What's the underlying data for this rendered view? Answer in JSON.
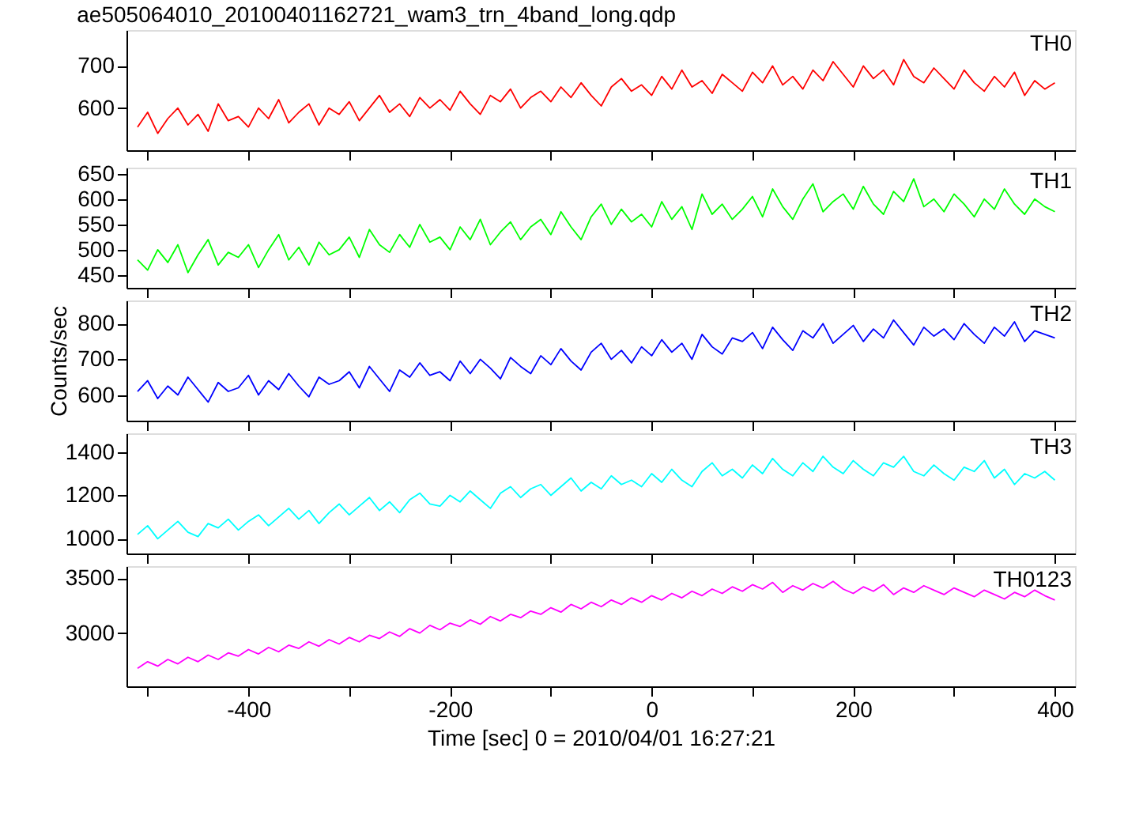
{
  "chart_data": [
    {
      "type": "line",
      "title": "ae505064010_20100401162721_wam3_trn_4band_long.qdp",
      "tick_labels": "y",
      "grid": false,
      "xlim": [
        -521,
        420
      ],
      "ylim": [
        500,
        785
      ],
      "xticks": [
        {
          "value": -500,
          "label": null
        },
        {
          "value": -400,
          "label": null
        },
        {
          "value": -300,
          "label": null
        },
        {
          "value": -200,
          "label": null
        },
        {
          "value": -100,
          "label": null
        },
        {
          "value": 0,
          "label": null
        },
        {
          "value": 100,
          "label": null
        },
        {
          "value": 200,
          "label": null
        },
        {
          "value": 300,
          "label": null
        },
        {
          "value": 400,
          "label": null
        }
      ],
      "yticks": [
        600,
        700
      ],
      "x": [
        -510,
        -500,
        -490,
        -480,
        -470,
        -460,
        -450,
        -440,
        -430,
        -420,
        -410,
        -400,
        -390,
        -380,
        -370,
        -360,
        -350,
        -340,
        -330,
        -320,
        -310,
        -300,
        -290,
        -280,
        -270,
        -260,
        -250,
        -240,
        -230,
        -220,
        -210,
        -200,
        -190,
        -180,
        -170,
        -160,
        -150,
        -140,
        -130,
        -120,
        -110,
        -100,
        -90,
        -80,
        -70,
        -60,
        -50,
        -40,
        -30,
        -20,
        -10,
        0,
        10,
        20,
        30,
        40,
        50,
        60,
        70,
        80,
        90,
        100,
        110,
        120,
        130,
        140,
        150,
        160,
        170,
        180,
        190,
        200,
        210,
        220,
        230,
        240,
        250,
        260,
        270,
        280,
        290,
        300,
        310,
        320,
        330,
        340,
        350,
        360,
        370,
        380,
        390,
        400
      ],
      "series": [
        {
          "name": "TH0",
          "color": "#ff0000",
          "line_style": "solid",
          "values": [
            555,
            590,
            540,
            575,
            600,
            560,
            585,
            545,
            610,
            570,
            580,
            555,
            600,
            575,
            620,
            565,
            590,
            610,
            560,
            600,
            585,
            615,
            570,
            600,
            630,
            590,
            610,
            580,
            625,
            600,
            620,
            595,
            640,
            610,
            585,
            630,
            615,
            645,
            600,
            625,
            640,
            615,
            650,
            625,
            660,
            630,
            605,
            650,
            670,
            640,
            655,
            630,
            675,
            645,
            690,
            650,
            665,
            635,
            680,
            660,
            640,
            685,
            660,
            700,
            655,
            675,
            645,
            690,
            665,
            710,
            680,
            650,
            700,
            670,
            690,
            655,
            715,
            675,
            660,
            695,
            670,
            645,
            690,
            660,
            640,
            675,
            650,
            685,
            630,
            665,
            645,
            660
          ]
        }
      ]
    },
    {
      "type": "line",
      "tick_labels": "y",
      "grid": false,
      "xlim": [
        -521,
        420
      ],
      "ylim": [
        425,
        662
      ],
      "xticks": [
        {
          "value": -500,
          "label": null
        },
        {
          "value": -400,
          "label": null
        },
        {
          "value": -300,
          "label": null
        },
        {
          "value": -200,
          "label": null
        },
        {
          "value": -100,
          "label": null
        },
        {
          "value": 0,
          "label": null
        },
        {
          "value": 100,
          "label": null
        },
        {
          "value": 200,
          "label": null
        },
        {
          "value": 300,
          "label": null
        },
        {
          "value": 400,
          "label": null
        }
      ],
      "yticks": [
        450,
        500,
        550,
        600,
        650
      ],
      "x": [
        -510,
        -500,
        -490,
        -480,
        -470,
        -460,
        -450,
        -440,
        -430,
        -420,
        -410,
        -400,
        -390,
        -380,
        -370,
        -360,
        -350,
        -340,
        -330,
        -320,
        -310,
        -300,
        -290,
        -280,
        -270,
        -260,
        -250,
        -240,
        -230,
        -220,
        -210,
        -200,
        -190,
        -180,
        -170,
        -160,
        -150,
        -140,
        -130,
        -120,
        -110,
        -100,
        -90,
        -80,
        -70,
        -60,
        -50,
        -40,
        -30,
        -20,
        -10,
        0,
        10,
        20,
        30,
        40,
        50,
        60,
        70,
        80,
        90,
        100,
        110,
        120,
        130,
        140,
        150,
        160,
        170,
        180,
        190,
        200,
        210,
        220,
        230,
        240,
        250,
        260,
        270,
        280,
        290,
        300,
        310,
        320,
        330,
        340,
        350,
        360,
        370,
        380,
        390,
        400
      ],
      "series": [
        {
          "name": "TH1",
          "color": "#00ff00",
          "line_style": "solid",
          "values": [
            480,
            460,
            500,
            475,
            510,
            455,
            490,
            520,
            470,
            495,
            485,
            510,
            465,
            500,
            530,
            480,
            505,
            470,
            515,
            490,
            500,
            525,
            485,
            540,
            510,
            495,
            530,
            505,
            550,
            515,
            525,
            500,
            545,
            520,
            560,
            510,
            535,
            555,
            520,
            545,
            560,
            530,
            575,
            545,
            520,
            565,
            590,
            550,
            580,
            555,
            570,
            545,
            595,
            560,
            585,
            540,
            610,
            570,
            590,
            560,
            580,
            605,
            565,
            620,
            585,
            560,
            600,
            630,
            575,
            595,
            610,
            580,
            625,
            590,
            570,
            615,
            595,
            640,
            585,
            600,
            575,
            610,
            590,
            565,
            600,
            580,
            620,
            590,
            570,
            600,
            585,
            575
          ]
        }
      ]
    },
    {
      "type": "line",
      "tick_labels": "y",
      "grid": false,
      "ylabel": "Counts/sec",
      "xlim": [
        -521,
        420
      ],
      "ylim": [
        528,
        865
      ],
      "xticks": [
        {
          "value": -500,
          "label": null
        },
        {
          "value": -400,
          "label": null
        },
        {
          "value": -300,
          "label": null
        },
        {
          "value": -200,
          "label": null
        },
        {
          "value": -100,
          "label": null
        },
        {
          "value": 0,
          "label": null
        },
        {
          "value": 100,
          "label": null
        },
        {
          "value": 200,
          "label": null
        },
        {
          "value": 300,
          "label": null
        },
        {
          "value": 400,
          "label": null
        }
      ],
      "yticks": [
        600,
        700,
        800
      ],
      "x": [
        -510,
        -500,
        -490,
        -480,
        -470,
        -460,
        -450,
        -440,
        -430,
        -420,
        -410,
        -400,
        -390,
        -380,
        -370,
        -360,
        -350,
        -340,
        -330,
        -320,
        -310,
        -300,
        -290,
        -280,
        -270,
        -260,
        -250,
        -240,
        -230,
        -220,
        -210,
        -200,
        -190,
        -180,
        -170,
        -160,
        -150,
        -140,
        -130,
        -120,
        -110,
        -100,
        -90,
        -80,
        -70,
        -60,
        -50,
        -40,
        -30,
        -20,
        -10,
        0,
        10,
        20,
        30,
        40,
        50,
        60,
        70,
        80,
        90,
        100,
        110,
        120,
        130,
        140,
        150,
        160,
        170,
        180,
        190,
        200,
        210,
        220,
        230,
        240,
        250,
        260,
        270,
        280,
        290,
        300,
        310,
        320,
        330,
        340,
        350,
        360,
        370,
        380,
        390,
        400
      ],
      "series": [
        {
          "name": "TH2",
          "color": "#0000ff",
          "line_style": "solid",
          "values": [
            610,
            640,
            590,
            625,
            600,
            650,
            615,
            580,
            635,
            610,
            620,
            655,
            600,
            640,
            615,
            660,
            625,
            595,
            650,
            630,
            640,
            665,
            620,
            680,
            645,
            610,
            670,
            650,
            690,
            655,
            665,
            640,
            695,
            660,
            700,
            675,
            645,
            705,
            680,
            660,
            710,
            685,
            730,
            695,
            670,
            720,
            745,
            700,
            725,
            690,
            735,
            710,
            755,
            720,
            745,
            700,
            770,
            735,
            715,
            760,
            750,
            775,
            730,
            790,
            755,
            725,
            780,
            760,
            800,
            745,
            770,
            795,
            750,
            785,
            760,
            810,
            775,
            740,
            790,
            765,
            785,
            755,
            800,
            770,
            745,
            790,
            765,
            805,
            750,
            780,
            770,
            760
          ]
        }
      ]
    },
    {
      "type": "line",
      "tick_labels": "y",
      "grid": false,
      "xlim": [
        -521,
        420
      ],
      "ylim": [
        932,
        1486
      ],
      "xticks": [
        {
          "value": -500,
          "label": null
        },
        {
          "value": -400,
          "label": null
        },
        {
          "value": -300,
          "label": null
        },
        {
          "value": -200,
          "label": null
        },
        {
          "value": -100,
          "label": null
        },
        {
          "value": 0,
          "label": null
        },
        {
          "value": 100,
          "label": null
        },
        {
          "value": 200,
          "label": null
        },
        {
          "value": 300,
          "label": null
        },
        {
          "value": 400,
          "label": null
        }
      ],
      "yticks": [
        1000,
        1200,
        1400
      ],
      "x": [
        -510,
        -500,
        -490,
        -480,
        -470,
        -460,
        -450,
        -440,
        -430,
        -420,
        -410,
        -400,
        -390,
        -380,
        -370,
        -360,
        -350,
        -340,
        -330,
        -320,
        -310,
        -300,
        -290,
        -280,
        -270,
        -260,
        -250,
        -240,
        -230,
        -220,
        -210,
        -200,
        -190,
        -180,
        -170,
        -160,
        -150,
        -140,
        -130,
        -120,
        -110,
        -100,
        -90,
        -80,
        -70,
        -60,
        -50,
        -40,
        -30,
        -20,
        -10,
        0,
        10,
        20,
        30,
        40,
        50,
        60,
        70,
        80,
        90,
        100,
        110,
        120,
        130,
        140,
        150,
        160,
        170,
        180,
        190,
        200,
        210,
        220,
        230,
        240,
        250,
        260,
        270,
        280,
        290,
        300,
        310,
        320,
        330,
        340,
        350,
        360,
        370,
        380,
        390,
        400
      ],
      "series": [
        {
          "name": "TH3",
          "color": "#00ffff",
          "line_style": "solid",
          "values": [
            1020,
            1060,
            1000,
            1040,
            1080,
            1030,
            1010,
            1070,
            1050,
            1090,
            1040,
            1080,
            1110,
            1060,
            1100,
            1140,
            1090,
            1130,
            1070,
            1120,
            1160,
            1110,
            1150,
            1190,
            1130,
            1170,
            1120,
            1180,
            1210,
            1160,
            1150,
            1200,
            1170,
            1220,
            1180,
            1140,
            1210,
            1240,
            1190,
            1230,
            1250,
            1200,
            1240,
            1280,
            1220,
            1260,
            1230,
            1290,
            1250,
            1270,
            1240,
            1300,
            1260,
            1320,
            1270,
            1240,
            1310,
            1350,
            1290,
            1320,
            1280,
            1340,
            1300,
            1370,
            1320,
            1290,
            1350,
            1310,
            1380,
            1330,
            1300,
            1360,
            1320,
            1290,
            1350,
            1330,
            1380,
            1310,
            1290,
            1340,
            1300,
            1270,
            1330,
            1310,
            1360,
            1280,
            1320,
            1250,
            1300,
            1280,
            1310,
            1270
          ]
        }
      ]
    },
    {
      "type": "line",
      "grid": false,
      "xlabel": "Time [sec] 0 = 2010/04/01 16:27:21",
      "xlim": [
        -521,
        420
      ],
      "ylim": [
        2516,
        3608
      ],
      "xticks": [
        {
          "value": -500,
          "label": null
        },
        -400,
        {
          "value": -300,
          "label": null
        },
        -200,
        {
          "value": -100,
          "label": null
        },
        0,
        {
          "value": 100,
          "label": null
        },
        200,
        {
          "value": 300,
          "label": null
        },
        400
      ],
      "yticks": [
        3000,
        3500
      ],
      "x": [
        -510,
        -500,
        -490,
        -480,
        -470,
        -460,
        -450,
        -440,
        -430,
        -420,
        -410,
        -400,
        -390,
        -380,
        -370,
        -360,
        -350,
        -340,
        -330,
        -320,
        -310,
        -300,
        -290,
        -280,
        -270,
        -260,
        -250,
        -240,
        -230,
        -220,
        -210,
        -200,
        -190,
        -180,
        -170,
        -160,
        -150,
        -140,
        -130,
        -120,
        -110,
        -100,
        -90,
        -80,
        -70,
        -60,
        -50,
        -40,
        -30,
        -20,
        -10,
        0,
        10,
        20,
        30,
        40,
        50,
        60,
        70,
        80,
        90,
        100,
        110,
        120,
        130,
        140,
        150,
        160,
        170,
        180,
        190,
        200,
        210,
        220,
        230,
        240,
        250,
        260,
        270,
        280,
        290,
        300,
        310,
        320,
        330,
        340,
        350,
        360,
        370,
        380,
        390,
        400
      ],
      "series": [
        {
          "name": "TH0123",
          "color": "#ff00ff",
          "line_style": "solid",
          "values": [
            2680,
            2740,
            2700,
            2760,
            2720,
            2780,
            2740,
            2800,
            2760,
            2820,
            2790,
            2850,
            2810,
            2870,
            2830,
            2890,
            2860,
            2920,
            2880,
            2940,
            2900,
            2960,
            2920,
            2980,
            2950,
            3010,
            2970,
            3040,
            3000,
            3070,
            3030,
            3090,
            3060,
            3120,
            3080,
            3150,
            3110,
            3170,
            3140,
            3200,
            3170,
            3230,
            3190,
            3260,
            3220,
            3280,
            3240,
            3300,
            3260,
            3320,
            3280,
            3340,
            3300,
            3360,
            3320,
            3380,
            3340,
            3400,
            3360,
            3420,
            3380,
            3440,
            3400,
            3460,
            3370,
            3430,
            3390,
            3450,
            3410,
            3470,
            3400,
            3360,
            3420,
            3380,
            3440,
            3350,
            3410,
            3370,
            3430,
            3390,
            3350,
            3410,
            3370,
            3330,
            3390,
            3350,
            3310,
            3370,
            3330,
            3390,
            3340,
            3300
          ]
        }
      ]
    }
  ]
}
